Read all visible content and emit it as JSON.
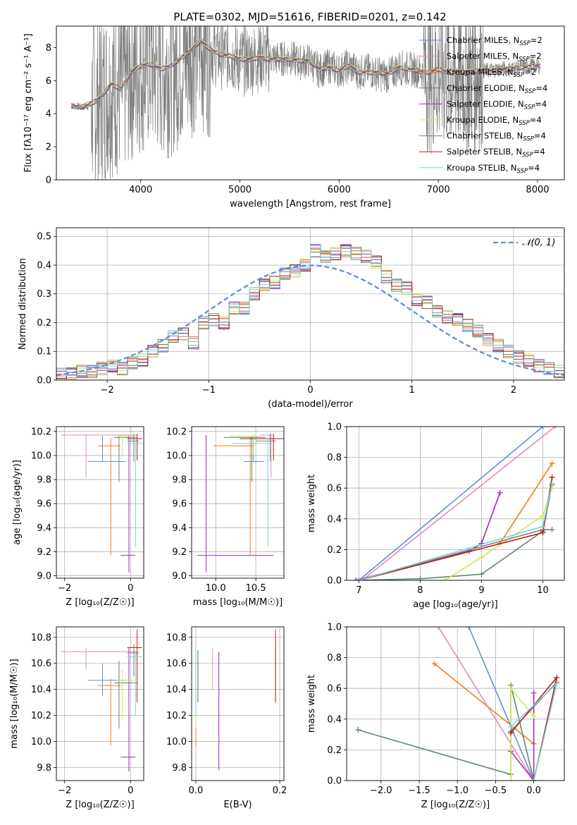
{
  "figure_title": "PLATE=0302, MJD=51616, FIBERID=0201, z=0.142",
  "colors": {
    "chabrier_miles": "#5f8fd6",
    "salpeter_miles": "#e08abf",
    "kroupa_miles": "#ee7d22",
    "chabrier_elodie": "#5d8a68",
    "salpeter_elodie": "#9b30b3",
    "kroupa_elodie": "#cfe85a",
    "chabrier_stelib": "#7f7f7f",
    "salpeter_stelib": "#b51f14",
    "kroupa_stelib": "#78d4d6",
    "gaussian": "#5f8fd6",
    "grid": "#b0b0b0"
  },
  "chart_data": [
    {
      "panel": "spectrum",
      "type": "line",
      "xlabel": "wavelength [Angstrom, rest frame]",
      "ylabel": "Flux [fλ10⁻¹⁷ erg cm⁻² s⁻¹ A⁻¹]",
      "xlim": [
        3150,
        8270
      ],
      "ylim": [
        0,
        9.3
      ],
      "xticks": [
        4000,
        5000,
        6000,
        7000,
        8000
      ],
      "yticks": [
        0,
        2,
        4,
        6,
        8
      ],
      "grid": false,
      "legend_position": "top-right",
      "data_x": [
        3300,
        3400,
        3500,
        3600,
        3700,
        3800,
        3900,
        4000,
        4100,
        4200,
        4300,
        4400,
        4500,
        4600,
        4700,
        4800,
        4900,
        5000,
        5100,
        5200,
        5300,
        5400,
        5500,
        5600,
        5700,
        5800,
        5900,
        6000,
        6100,
        6200,
        6300,
        6400,
        6500,
        6600,
        6700,
        6800,
        6900,
        7000,
        7100,
        7200,
        7300,
        7400,
        7500,
        7600,
        7700,
        7800,
        7900,
        8000
      ],
      "data_y": [
        4.5,
        4.4,
        4.5,
        4.9,
        5.6,
        5.4,
        6.4,
        6.9,
        7.1,
        6.7,
        6.8,
        7.3,
        7.9,
        8.5,
        7.9,
        7.6,
        7.6,
        7.2,
        7.2,
        7.5,
        7.4,
        7.3,
        7.4,
        7.1,
        7.2,
        6.6,
        6.9,
        6.6,
        6.9,
        6.5,
        6.6,
        6.4,
        6.3,
        6.8,
        6.7,
        6.6,
        6.5,
        6.7,
        6.5,
        6.5,
        6.4,
        6.6,
        6.6,
        6.7,
        6.7,
        6.8,
        6.9,
        6.9
      ],
      "model_y": [
        4.5,
        4.4,
        4.6,
        5.0,
        5.8,
        5.5,
        6.5,
        6.9,
        7.0,
        6.7,
        6.9,
        7.3,
        7.8,
        8.4,
        7.9,
        7.6,
        7.5,
        7.3,
        7.3,
        7.4,
        7.3,
        7.3,
        7.3,
        7.2,
        7.2,
        6.7,
        6.8,
        6.6,
        6.9,
        6.5,
        6.5,
        6.5,
        6.4,
        6.8,
        6.7,
        6.6,
        6.5,
        6.7,
        6.5,
        6.5,
        6.5,
        6.6,
        6.6,
        6.6,
        6.7,
        6.8,
        6.8,
        6.9
      ],
      "series": [
        {
          "key": "chabrier_miles",
          "name_main": "Chabrier MILES, N",
          "name_sub": "SSP",
          "name_end": "=2"
        },
        {
          "key": "salpeter_miles",
          "name_main": "Salpeter MILES, N",
          "name_sub": "SSP",
          "name_end": "=2"
        },
        {
          "key": "kroupa_miles",
          "name_main": "Kroupa MILES, N",
          "name_sub": "SSP",
          "name_end": "=2"
        },
        {
          "key": "chabrier_elodie",
          "name_main": "Chabrier ELODIE, N",
          "name_sub": "SSP",
          "name_end": "=4"
        },
        {
          "key": "salpeter_elodie",
          "name_main": "Salpeter ELODIE, N",
          "name_sub": "SSP",
          "name_end": "=4"
        },
        {
          "key": "kroupa_elodie",
          "name_main": "Kroupa ELODIE, N",
          "name_sub": "SSP",
          "name_end": "=4"
        },
        {
          "key": "chabrier_stelib",
          "name_main": "Chabrier STELIB, N",
          "name_sub": "SSP",
          "name_end": "=4"
        },
        {
          "key": "salpeter_stelib",
          "name_main": "Salpeter STELIB, N",
          "name_sub": "SSP",
          "name_end": "=4"
        },
        {
          "key": "kroupa_stelib",
          "name_main": "Kroupa STELIB, N",
          "name_sub": "SSP",
          "name_end": "=4"
        }
      ]
    },
    {
      "panel": "residuals",
      "type": "line",
      "xlabel": "(data-model)/error",
      "ylabel": "Normed distribution",
      "xlim": [
        -2.5,
        2.5
      ],
      "ylim": [
        0,
        0.53
      ],
      "xticks": [
        -2,
        -1,
        0,
        1,
        2
      ],
      "yticks": [
        0.0,
        0.1,
        0.2,
        0.3,
        0.4,
        0.5
      ],
      "grid": true,
      "legend_position": "top-right",
      "gaussian_label": "𝒩(0, 1)",
      "bin_width": 0.1,
      "bin_start": -2.5,
      "hist_base": [
        0.02,
        0.02,
        0.03,
        0.03,
        0.04,
        0.05,
        0.04,
        0.06,
        0.07,
        0.1,
        0.12,
        0.15,
        0.16,
        0.13,
        0.2,
        0.21,
        0.2,
        0.25,
        0.25,
        0.3,
        0.33,
        0.34,
        0.37,
        0.38,
        0.4,
        0.45,
        0.43,
        0.44,
        0.45,
        0.44,
        0.43,
        0.41,
        0.36,
        0.33,
        0.32,
        0.28,
        0.27,
        0.24,
        0.22,
        0.21,
        0.19,
        0.17,
        0.14,
        0.12,
        0.1,
        0.08,
        0.07,
        0.05,
        0.04,
        0.03
      ]
    },
    {
      "panel": "z-vs-age",
      "type": "scatter",
      "xlabel": "Z [log₁₀(Z/Z☉)]",
      "ylabel": "age  [log₁₀(age/yr)]",
      "xlim": [
        -2.25,
        0.4
      ],
      "ylim": [
        8.98,
        10.24
      ],
      "xticks": [
        -2,
        0
      ],
      "yticks": [
        9.0,
        9.2,
        9.4,
        9.6,
        9.8,
        10.0,
        10.2
      ],
      "grid": true
    },
    {
      "panel": "mass-vs-age",
      "type": "scatter",
      "xlabel": "mass [log₁₀(M/M☉)]",
      "ylabel": "",
      "xlim": [
        9.7,
        10.85
      ],
      "ylim": [
        8.98,
        10.24
      ],
      "xticks": [
        10.0,
        10.5
      ],
      "yticks": [
        9.0,
        9.2,
        9.4,
        9.6,
        9.8,
        10.0,
        10.2
      ],
      "grid": true
    },
    {
      "panel": "age-vs-massweight",
      "type": "line",
      "xlabel": "age  [log₁₀(age/yr)]",
      "ylabel": "mass weight",
      "xlim": [
        6.8,
        10.35
      ],
      "ylim": [
        0,
        1.0
      ],
      "xticks": [
        7,
        8,
        9,
        10
      ],
      "yticks": [
        0.0,
        0.2,
        0.4,
        0.6,
        0.8,
        1.0
      ],
      "grid": true
    },
    {
      "panel": "z-vs-mass",
      "type": "scatter",
      "xlabel": "Z [log₁₀(Z/Z☉)]",
      "ylabel": "mass [log₁₀(M/M☉)]",
      "xlim": [
        -2.25,
        0.4
      ],
      "ylim": [
        9.7,
        10.88
      ],
      "xticks": [
        -2,
        0
      ],
      "yticks": [
        9.8,
        10.0,
        10.2,
        10.4,
        10.6,
        10.8
      ],
      "grid": true
    },
    {
      "panel": "ebv-vs-mass",
      "type": "scatter",
      "xlabel": "E(B-V)",
      "ylabel": "",
      "xlim": [
        -0.01,
        0.21
      ],
      "ylim": [
        9.7,
        10.88
      ],
      "xticks": [
        0.0,
        0.2
      ],
      "yticks": [
        9.8,
        10.0,
        10.2,
        10.4,
        10.6,
        10.8
      ],
      "grid": true
    },
    {
      "panel": "z-vs-massweight",
      "type": "line",
      "xlabel": "Z [log₁₀(Z/Z☉)]",
      "ylabel": "mass weight",
      "xlim": [
        -2.45,
        0.4
      ],
      "ylim": [
        0,
        1.0
      ],
      "xticks": [
        -2.0,
        -1.5,
        -1.0,
        -0.5,
        0.0
      ],
      "yticks": [
        0.0,
        0.2,
        0.4,
        0.6,
        0.8,
        1.0
      ],
      "grid": true
    }
  ],
  "fits": [
    {
      "key": "chabrier_miles",
      "Z": -0.85,
      "Zerr": [
        -1.3,
        -0.15
      ],
      "age": 9.95,
      "ageerr": [
        9.95,
        10.16
      ],
      "mass": 10.47,
      "masserr": [
        10.35,
        10.6
      ],
      "ebv": 0.005,
      "ebverr": [
        10.3,
        10.7
      ],
      "age_mw": [
        [
          7.0,
          0.0
        ],
        [
          10.0,
          1.0
        ]
      ],
      "z_mw": [
        [
          0.0,
          0.0
        ],
        [
          -0.85,
          1.0
        ]
      ]
    },
    {
      "key": "salpeter_miles",
      "Z": -1.35,
      "Zerr": [
        -2.1,
        0.2
      ],
      "age": 10.17,
      "ageerr": [
        9.82,
        10.18
      ],
      "mass": 10.69,
      "masserr": [
        10.55,
        10.72
      ],
      "ebv": 0.04,
      "ebverr": [
        10.4,
        10.72
      ],
      "age_mw": [
        [
          7.05,
          0.0
        ],
        [
          10.2,
          1.0
        ]
      ],
      "z_mw": [
        [
          0.0,
          0.0
        ],
        [
          -1.25,
          1.0
        ]
      ]
    },
    {
      "key": "kroupa_miles",
      "Z": -0.6,
      "Zerr": [
        -1.0,
        -0.3
      ],
      "age": 10.08,
      "ageerr": [
        9.17,
        10.15
      ],
      "mass": 10.43,
      "masserr": [
        9.97,
        10.48
      ],
      "ebv": 0.0,
      "ebverr": [
        9.96,
        10.5
      ],
      "age_mw": [
        [
          9.3,
          0.24
        ],
        [
          10.15,
          0.76
        ]
      ],
      "z_mw": [
        [
          0.0,
          0.24
        ],
        [
          -1.3,
          0.76
        ]
      ]
    },
    {
      "key": "chabrier_elodie",
      "Z": -0.35,
      "Zerr": [
        -0.5,
        0.2
      ],
      "age": 10.15,
      "ageerr": [
        9.78,
        10.16
      ],
      "mass": 10.45,
      "masserr": [
        10.1,
        10.62
      ],
      "ebv": 0.005,
      "ebverr": [
        10.3,
        10.7
      ],
      "age_mw": [
        [
          6.95,
          0.0
        ],
        [
          8.0,
          0.01
        ],
        [
          9.0,
          0.04
        ],
        [
          10.0,
          0.32
        ],
        [
          10.15,
          0.62
        ]
      ],
      "z_mw": [
        [
          -2.3,
          0.33
        ],
        [
          -0.3,
          0.04
        ],
        [
          -0.3,
          0.62
        ],
        [
          0.0,
          0.0
        ]
      ]
    },
    {
      "key": "salpeter_elodie",
      "Z": -0.05,
      "Zerr": [
        -0.3,
        0.15
      ],
      "age": 9.17,
      "ageerr": [
        9.03,
        10.17
      ],
      "mass": 9.88,
      "masserr": [
        9.77,
        10.72
      ],
      "ebv": 0.055,
      "ebverr": [
        9.78,
        10.69
      ],
      "age_mw": [
        [
          6.95,
          0.0
        ],
        [
          8.8,
          0.19
        ],
        [
          9.0,
          0.24
        ],
        [
          9.3,
          0.57
        ]
      ],
      "z_mw": [
        [
          -0.3,
          0.19
        ],
        [
          0.0,
          0.0
        ],
        [
          0.0,
          0.57
        ]
      ]
    },
    {
      "key": "kroupa_elodie",
      "Z": -0.25,
      "Zerr": [
        -0.4,
        0.1
      ],
      "age": 10.16,
      "ageerr": [
        10.0,
        10.18
      ],
      "mass": 10.47,
      "masserr": [
        10.17,
        10.55
      ],
      "ebv": 0.0,
      "ebverr": [
        10.1,
        10.6
      ],
      "age_mw": [
        [
          8.4,
          0.0
        ],
        [
          9.0,
          0.15
        ],
        [
          10.0,
          0.42
        ],
        [
          10.15,
          0.6
        ]
      ],
      "z_mw": [
        [
          -0.3,
          0.0
        ],
        [
          -0.3,
          0.6
        ],
        [
          0.0,
          0.42
        ]
      ]
    },
    {
      "key": "chabrier_stelib",
      "Z": 0.1,
      "Zerr": [
        -0.1,
        0.25
      ],
      "age": 10.12,
      "ageerr": [
        9.95,
        10.18
      ],
      "mass": 10.68,
      "masserr": [
        10.5,
        10.75
      ],
      "ebv": 0.19,
      "ebverr": [
        10.3,
        10.75
      ],
      "age_mw": [
        [
          7.0,
          0.0
        ],
        [
          10.0,
          0.33
        ],
        [
          10.15,
          0.33
        ]
      ],
      "z_mw": [
        [
          -0.3,
          0.32
        ],
        [
          0.3,
          0.64
        ]
      ]
    },
    {
      "key": "salpeter_stelib",
      "Z": 0.2,
      "Zerr": [
        -0.1,
        0.35
      ],
      "age": 10.14,
      "ageerr": [
        9.96,
        10.18
      ],
      "mass": 10.72,
      "masserr": [
        10.3,
        10.86
      ],
      "ebv": 0.19,
      "ebverr": [
        10.3,
        10.86
      ],
      "age_mw": [
        [
          7.0,
          0.0
        ],
        [
          10.0,
          0.31
        ],
        [
          10.15,
          0.67
        ]
      ],
      "z_mw": [
        [
          -0.3,
          0.31
        ],
        [
          0.3,
          0.67
        ],
        [
          0.0,
          0.0
        ]
      ]
    },
    {
      "key": "kroupa_stelib",
      "Z": 0.15,
      "Zerr": [
        -0.1,
        0.35
      ],
      "age": 10.1,
      "ageerr": [
        9.24,
        10.16
      ],
      "mass": 10.65,
      "masserr": [
        10.2,
        10.7
      ],
      "ebv": 0.0,
      "ebverr": [
        10.2,
        10.7
      ],
      "age_mw": [
        [
          7.0,
          0.0
        ],
        [
          10.0,
          0.35
        ],
        [
          10.15,
          0.63
        ]
      ],
      "z_mw": [
        [
          -0.3,
          0.35
        ],
        [
          0.3,
          0.63
        ],
        [
          0.0,
          0.0
        ]
      ]
    }
  ]
}
